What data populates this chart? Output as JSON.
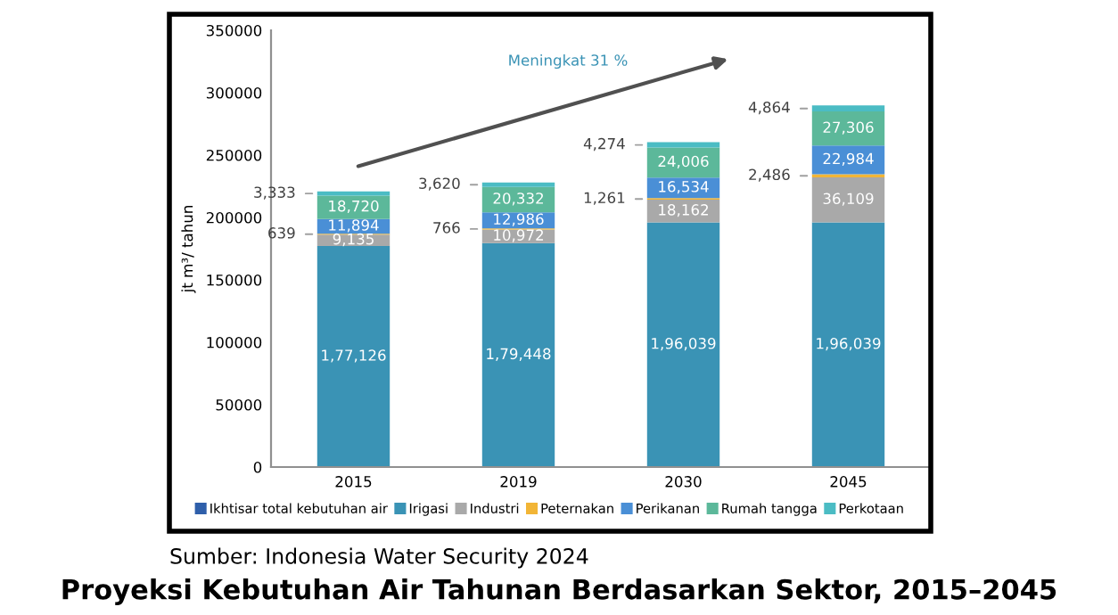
{
  "chart_data": {
    "type": "bar",
    "stacked": true,
    "title": "Proyeksi Kebutuhan Air Tahunan Berdasarkan Sektor, 2015–2045",
    "ylabel": "jt m³/ tahun",
    "categories": [
      "2015",
      "2019",
      "2030",
      "2045"
    ],
    "series": [
      {
        "name": "Ikhtisar total kebutuhan air",
        "color": "#2f5faa",
        "values": [
          null,
          null,
          null,
          null
        ]
      },
      {
        "name": "Irigasi",
        "color": "#3a93b5",
        "values": [
          177126,
          179448,
          196039,
          196039
        ],
        "value_labels": [
          "1,77,126",
          "1,79,448",
          "1,96,039",
          "1,96,039"
        ]
      },
      {
        "name": "Industri",
        "color": "#a9a9a9",
        "values": [
          9135,
          10972,
          18162,
          36109
        ],
        "value_labels": [
          "9,135",
          "10,972",
          "18,162",
          "36,109"
        ]
      },
      {
        "name": "Peternakan",
        "color": "#f2b536",
        "values": [
          639,
          766,
          1261,
          2486
        ],
        "value_labels": [
          "639",
          "766",
          "1,261",
          "2,486"
        ]
      },
      {
        "name": "Perikanan",
        "color": "#4a8fd6",
        "values": [
          11894,
          12986,
          16534,
          22984
        ],
        "value_labels": [
          "11,894",
          "12,986",
          "16,534",
          "22,984"
        ]
      },
      {
        "name": "Rumah tangga",
        "color": "#5cb89a",
        "values": [
          18720,
          20332,
          24006,
          27306
        ],
        "value_labels": [
          "18,720",
          "20,332",
          "24,006",
          "27,306"
        ]
      },
      {
        "name": "Perkotaan",
        "color": "#4bbcc4",
        "values": [
          3333,
          3620,
          4274,
          4864
        ],
        "value_labels": [
          "3,333",
          "3,620",
          "4,274",
          "4,864"
        ]
      }
    ],
    "ylim": [
      0,
      350000
    ],
    "yticks": [
      0,
      50000,
      100000,
      150000,
      200000,
      250000,
      300000,
      350000
    ],
    "grid": false,
    "legend": "bottom",
    "annotations": [
      "Meningkat 31 %",
      "Sumber: Indonesia Water Security 2024"
    ]
  }
}
